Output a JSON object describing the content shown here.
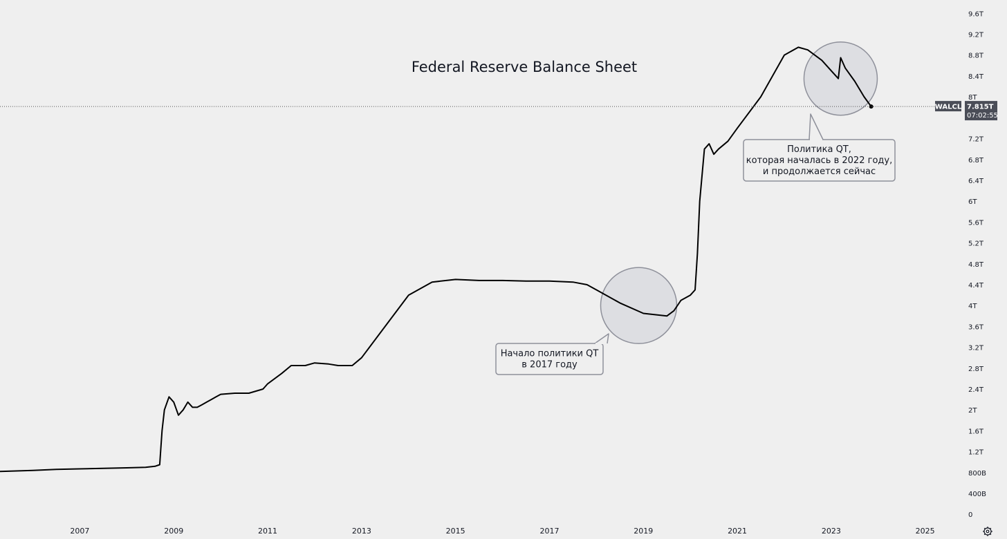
{
  "chart_data": {
    "type": "line",
    "title": "Federal Reserve Balance Sheet",
    "xlabel": "",
    "ylabel": "",
    "x_ticks": [
      "2007",
      "2009",
      "2011",
      "2013",
      "2015",
      "2017",
      "2019",
      "2021",
      "2023",
      "2025"
    ],
    "y_ticks": [
      "0",
      "400B",
      "800B",
      "1.2T",
      "1.6T",
      "2T",
      "2.4T",
      "2.8T",
      "3.2T",
      "3.6T",
      "4T",
      "4.4T",
      "4.8T",
      "5.2T",
      "5.6T",
      "6T",
      "6.4T",
      "6.8T",
      "7.2T",
      "8T",
      "8.4T",
      "8.8T",
      "9.2T",
      "9.6T"
    ],
    "y_tick_values": [
      0,
      0.4,
      0.8,
      1.2,
      1.6,
      2.0,
      2.4,
      2.8,
      3.2,
      3.6,
      4.0,
      4.4,
      4.8,
      5.2,
      5.6,
      6.0,
      6.4,
      6.8,
      7.2,
      8.0,
      8.4,
      8.8,
      9.2,
      9.6
    ],
    "xlim": [
      2005.3,
      2025.8
    ],
    "ylim": [
      -0.05,
      9.75
    ],
    "units": "trillion USD",
    "grid": false,
    "series": [
      {
        "name": "WALCL",
        "color": "#000000",
        "x": [
          2005.3,
          2006.0,
          2006.5,
          2007.0,
          2007.5,
          2008.0,
          2008.4,
          2008.6,
          2008.7,
          2008.75,
          2008.8,
          2008.9,
          2009.0,
          2009.1,
          2009.2,
          2009.3,
          2009.4,
          2009.5,
          2009.6,
          2009.7,
          2009.8,
          2009.9,
          2010.0,
          2010.3,
          2010.6,
          2010.9,
          2011.0,
          2011.3,
          2011.5,
          2011.8,
          2012.0,
          2012.3,
          2012.5,
          2012.8,
          2013.0,
          2013.5,
          2014.0,
          2014.5,
          2015.0,
          2015.5,
          2016.0,
          2016.5,
          2017.0,
          2017.5,
          2017.8,
          2018.0,
          2018.5,
          2019.0,
          2019.5,
          2019.65,
          2019.8,
          2020.0,
          2020.1,
          2020.15,
          2020.2,
          2020.3,
          2020.4,
          2020.5,
          2020.6,
          2020.8,
          2021.0,
          2021.5,
          2022.0,
          2022.3,
          2022.5,
          2022.8,
          2023.0,
          2023.15,
          2023.2,
          2023.3,
          2023.5,
          2023.7,
          2023.85
        ],
        "y": [
          0.82,
          0.84,
          0.86,
          0.87,
          0.88,
          0.89,
          0.9,
          0.92,
          0.95,
          1.6,
          2.0,
          2.25,
          2.15,
          1.9,
          2.0,
          2.15,
          2.05,
          2.05,
          2.1,
          2.15,
          2.2,
          2.25,
          2.3,
          2.32,
          2.32,
          2.4,
          2.5,
          2.7,
          2.85,
          2.85,
          2.9,
          2.88,
          2.85,
          2.85,
          3.0,
          3.6,
          4.2,
          4.45,
          4.5,
          4.48,
          4.48,
          4.47,
          4.47,
          4.45,
          4.4,
          4.3,
          4.05,
          3.85,
          3.8,
          3.9,
          4.1,
          4.2,
          4.3,
          5.0,
          6.0,
          7.0,
          7.1,
          6.9,
          7.0,
          7.15,
          7.4,
          8.0,
          8.8,
          8.95,
          8.9,
          8.7,
          8.5,
          8.35,
          8.75,
          8.55,
          8.3,
          8.0,
          7.815
        ]
      }
    ],
    "last_value_label": {
      "symbol": "WALCL",
      "value": "7.815T",
      "time": "07:02:55",
      "value_num": 7.815
    },
    "annotations": [
      {
        "lines": [
          "Начало политики QT",
          "в 2017 году"
        ],
        "circle_center": [
          2018.9,
          4.0
        ],
        "callout_anchor": [
          2017.9,
          3.1
        ]
      },
      {
        "lines": [
          "Политика QT,",
          "которая началась в 2022 году,",
          "и продолжается сейчас"
        ],
        "circle_center": [
          2023.2,
          8.35
        ],
        "callout_anchor": [
          2023.3,
          6.9
        ]
      }
    ]
  },
  "ui": {
    "settings_icon": "gear-icon"
  }
}
